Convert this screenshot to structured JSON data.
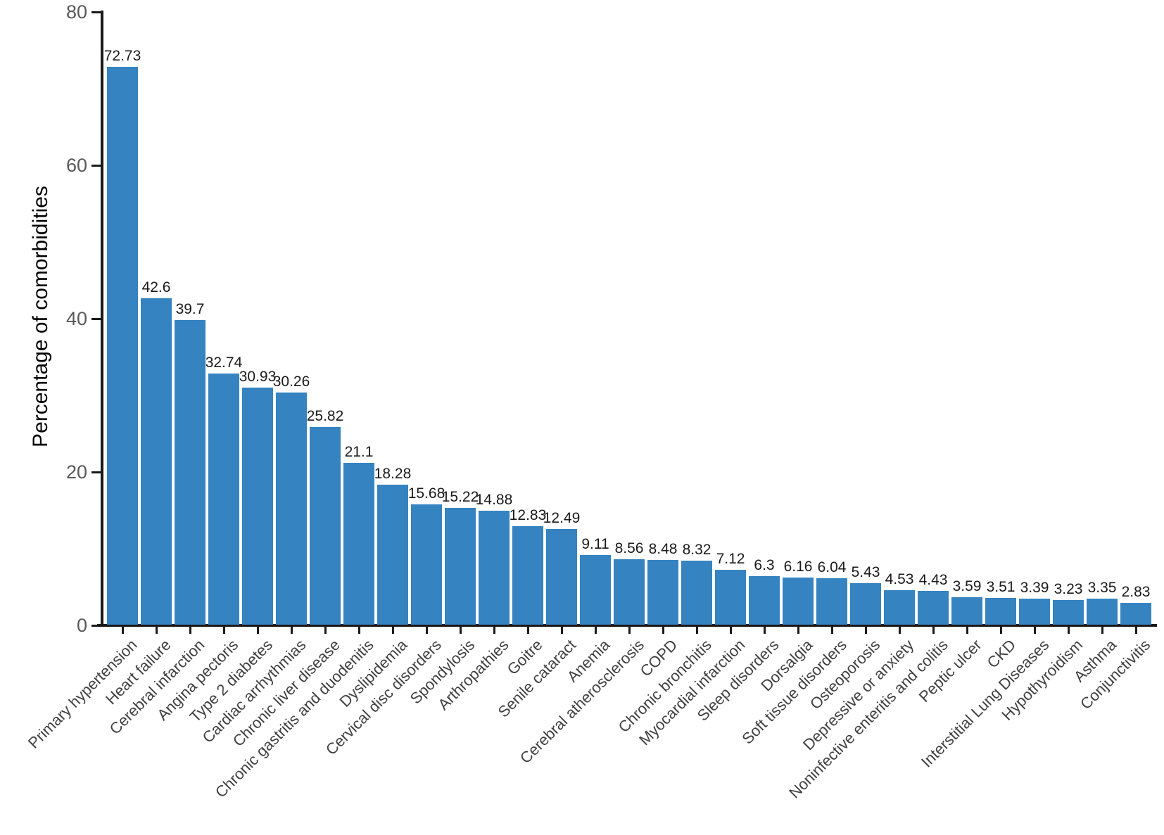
{
  "figure": {
    "background": "#ffffff"
  },
  "chart_data": {
    "type": "bar",
    "title": "",
    "xlabel": "",
    "ylabel": "Percentage of comorbidities",
    "ylim": [
      0,
      80
    ],
    "yticks": [
      0,
      20,
      40,
      60,
      80
    ],
    "grid": false,
    "legend": false,
    "bar_color": "#3583c1",
    "axis_color": "#1a1a1a",
    "y_tick_label_color": "#595959",
    "category_label_color": "#404040",
    "value_label_color": "#1a1a1a",
    "categories": [
      "Primary hypertension",
      "Heart failure",
      "Cerebral infarction",
      "Angina pectoris",
      "Type 2 diabetes",
      "Cardiac arrhythmias",
      "Chronic liver disease",
      "Chronic gastritis and duodenitis",
      "Dyslipidemia",
      "Cervical disc disorders",
      "Spondylosis",
      "Arthropathies",
      "Goitre",
      "Senile cataract",
      "Anemia",
      "Cerebral atherosclerosis",
      "COPD",
      "Chronic bronchitis",
      "Myocardial infarction",
      "Sleep disorders",
      "Dorsalgia",
      "Soft tissue disorders",
      "Osteoporosis",
      "Depressive or anxiety",
      "Noninfective enteritis and colitis",
      "Peptic ulcer",
      "CKD",
      "Interstitial Lung Diseases",
      "Hypothyroidism",
      "Asthma",
      "Conjunctivitis"
    ],
    "values": [
      72.73,
      42.6,
      39.7,
      32.74,
      30.93,
      30.26,
      25.82,
      21.1,
      18.28,
      15.68,
      15.22,
      14.88,
      12.83,
      12.49,
      9.11,
      8.56,
      8.48,
      8.32,
      7.12,
      6.3,
      6.16,
      6.04,
      5.43,
      4.53,
      4.43,
      3.59,
      3.51,
      3.39,
      3.23,
      3.35,
      2.83
    ]
  }
}
